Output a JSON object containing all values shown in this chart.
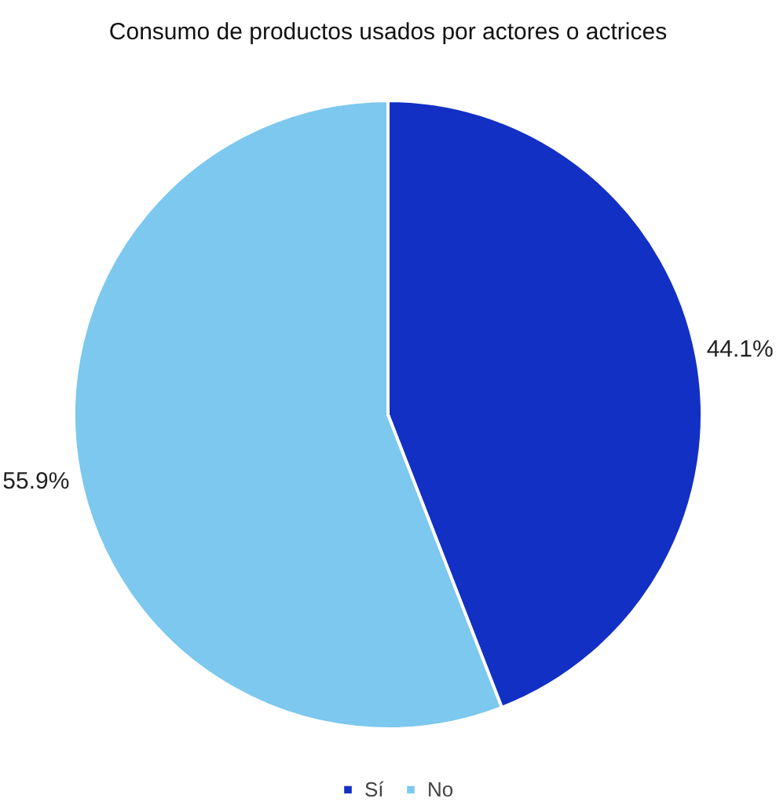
{
  "chart_data": {
    "type": "pie",
    "title": "Consumo de productos usados por actores o actrices",
    "categories": [
      "Sí",
      "No"
    ],
    "values": [
      44.1,
      55.9
    ],
    "colors": [
      "#1330c4",
      "#7cc8ee"
    ],
    "value_labels": [
      "44.1%",
      "55.9%"
    ],
    "legend": "bottom"
  }
}
